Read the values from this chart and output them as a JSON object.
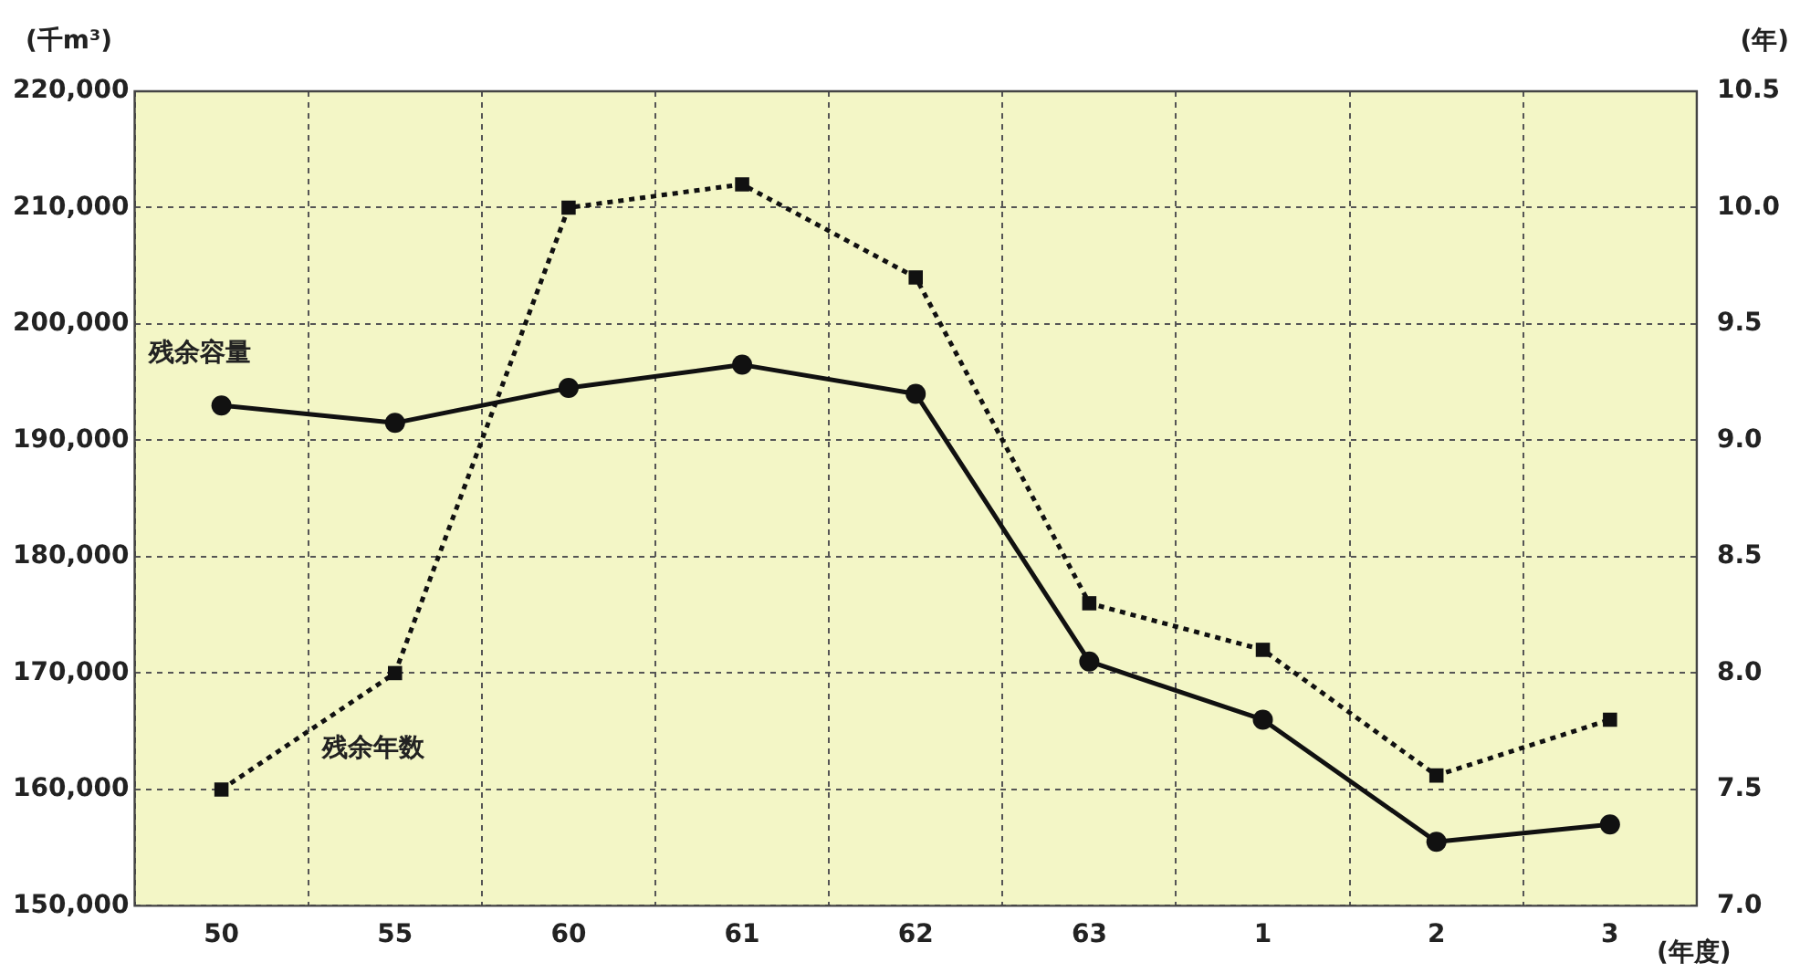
{
  "chart_data": {
    "type": "line",
    "ylabel": "(千m³)",
    "y2label": "(年)",
    "xlabel": "(年度)",
    "categories": [
      "50",
      "55",
      "60",
      "61",
      "62",
      "63",
      "1",
      "2",
      "3"
    ],
    "series": [
      {
        "name": "残余容量",
        "color": "#111111",
        "marker": "circle",
        "line_style": "solid",
        "values": [
          193000,
          191500,
          194500,
          196500,
          194000,
          171000,
          166000,
          155500,
          157000
        ]
      },
      {
        "name": "残余年数",
        "color": "#111111",
        "marker": "square",
        "line_style": "dotted",
        "axis": "y2",
        "values": [
          7.5,
          8.0,
          10.0,
          10.1,
          9.7,
          8.3,
          8.1,
          7.56,
          7.8
        ]
      }
    ],
    "ylim": [
      150000,
      220000
    ],
    "yticks": [
      {
        "value": 150000,
        "label": "150,000"
      },
      {
        "value": 160000,
        "label": "160,000"
      },
      {
        "value": 170000,
        "label": "170,000"
      },
      {
        "value": 180000,
        "label": "180,000"
      },
      {
        "value": 190000,
        "label": "190,000"
      },
      {
        "value": 200000,
        "label": "200,000"
      },
      {
        "value": 210000,
        "label": "210,000"
      },
      {
        "value": 220000,
        "label": "220,000"
      }
    ],
    "y2lim": [
      7.0,
      10.5
    ],
    "y2ticks": [
      {
        "value": 7.0,
        "label": "7.0"
      },
      {
        "value": 7.5,
        "label": "7.5"
      },
      {
        "value": 8.0,
        "label": "8.0"
      },
      {
        "value": 8.5,
        "label": "8.5"
      },
      {
        "value": 9.0,
        "label": "9.0"
      },
      {
        "value": 9.5,
        "label": "9.5"
      },
      {
        "value": 10.0,
        "label": "10.0"
      },
      {
        "value": 10.5,
        "label": "10.5"
      }
    ],
    "grid": true,
    "legend": false
  }
}
